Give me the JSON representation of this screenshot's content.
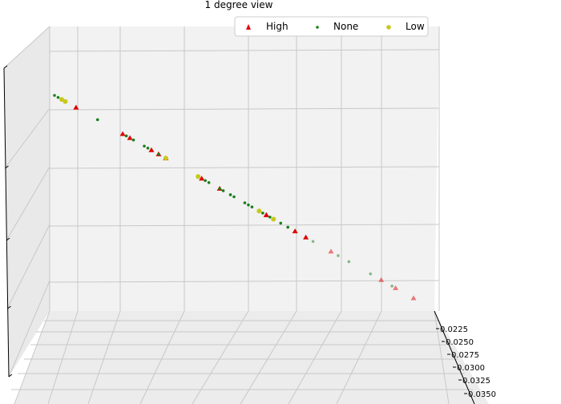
{
  "chart_data": {
    "type": "scatter",
    "title": "1 degree view",
    "legend_position": "top-right",
    "grid": true,
    "series": [
      {
        "name": "High",
        "marker": "triangle",
        "color": "#e00000",
        "points": [
          0.06,
          0.19,
          0.21,
          0.27,
          0.29,
          0.31,
          0.41,
          0.46,
          0.59,
          0.59,
          0.67,
          0.7,
          0.77,
          0.91,
          0.95,
          1.0
        ]
      },
      {
        "name": "None",
        "marker": "dot",
        "color": "#1a7f1a",
        "points": [
          0.0,
          0.01,
          0.03,
          0.12,
          0.2,
          0.22,
          0.25,
          0.26,
          0.29,
          0.31,
          0.4,
          0.42,
          0.43,
          0.46,
          0.47,
          0.49,
          0.5,
          0.53,
          0.54,
          0.55,
          0.58,
          0.6,
          0.63,
          0.65,
          0.72,
          0.79,
          0.82,
          0.88,
          0.94
        ]
      },
      {
        "name": "Low",
        "marker": "circle",
        "color": "#c8c81e",
        "points": [
          0.02,
          0.03,
          0.31,
          0.4,
          0.57,
          0.61
        ]
      }
    ],
    "depth_axis": {
      "ticks": [
        "0.0225",
        "0.0250",
        "0.0275",
        "0.0300",
        "0.0325",
        "0.0350"
      ]
    }
  }
}
